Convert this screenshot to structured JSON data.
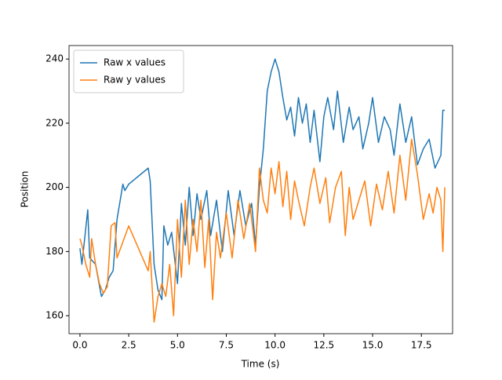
{
  "chart_data": {
    "type": "line",
    "xlabel": "Time (s)",
    "ylabel": "Position",
    "xlim": [
      -0.56,
      19.1
    ],
    "ylim": [
      154.4,
      244.2
    ],
    "xticks": [
      {
        "value": 0,
        "label": "0.0"
      },
      {
        "value": 2.5,
        "label": "2.5"
      },
      {
        "value": 5,
        "label": "5.0"
      },
      {
        "value": 7.5,
        "label": "7.5"
      },
      {
        "value": 10,
        "label": "10.0"
      },
      {
        "value": 12.5,
        "label": "12.5"
      },
      {
        "value": 15,
        "label": "15.0"
      },
      {
        "value": 17.5,
        "label": "17.5"
      }
    ],
    "yticks": [
      160,
      180,
      200,
      220,
      240
    ],
    "legend": "upper left",
    "series": [
      {
        "name": "Raw x values",
        "color": "#1f77b4",
        "x": [
          0,
          0.1,
          0.4,
          0.5,
          0.8,
          1.1,
          1.3,
          1.5,
          1.7,
          1.9,
          2.2,
          2.3,
          2.5,
          3.5,
          3.6,
          3.8,
          4.0,
          4.2,
          4.3,
          4.5,
          4.7,
          5.0,
          5.2,
          5.4,
          5.6,
          5.8,
          6.0,
          6.2,
          6.5,
          6.7,
          7.0,
          7.3,
          7.6,
          7.9,
          8.2,
          8.5,
          8.8,
          9.0,
          9.2,
          9.4,
          9.6,
          9.8,
          10.0,
          10.2,
          10.4,
          10.6,
          10.8,
          11.0,
          11.2,
          11.4,
          11.6,
          11.8,
          12.0,
          12.3,
          12.5,
          12.7,
          13.0,
          13.2,
          13.5,
          13.8,
          14.0,
          14.3,
          14.5,
          14.8,
          15.0,
          15.3,
          15.6,
          15.9,
          16.1,
          16.4,
          16.7,
          17.0,
          17.3,
          17.6,
          17.9,
          18.2,
          18.5,
          18.6,
          18.7
        ],
        "values": [
          181,
          176,
          193,
          178,
          176,
          166,
          168,
          172,
          174,
          190,
          201,
          199,
          201,
          206,
          202,
          176,
          168,
          165,
          188,
          182,
          186,
          170,
          195,
          182,
          200,
          185,
          198,
          190,
          199,
          185,
          196,
          180,
          199,
          185,
          199,
          188,
          195,
          182,
          200,
          212,
          230,
          236,
          240,
          236,
          228,
          221,
          225,
          216,
          228,
          220,
          226,
          214,
          224,
          208,
          222,
          228,
          218,
          230,
          214,
          225,
          218,
          222,
          212,
          220,
          228,
          214,
          222,
          218,
          210,
          226,
          214,
          222,
          207,
          212,
          215,
          206,
          210,
          224,
          224
        ]
      },
      {
        "name": "Raw y values",
        "color": "#ff7f0e",
        "x": [
          0,
          0.1,
          0.3,
          0.5,
          0.6,
          0.8,
          1.0,
          1.2,
          1.4,
          1.6,
          1.8,
          1.9,
          2.2,
          2.5,
          3.5,
          3.6,
          3.8,
          4.0,
          4.2,
          4.4,
          4.6,
          4.8,
          5.0,
          5.2,
          5.4,
          5.6,
          5.8,
          6.0,
          6.2,
          6.4,
          6.6,
          6.8,
          7.0,
          7.2,
          7.5,
          7.8,
          8.1,
          8.4,
          8.7,
          9.0,
          9.2,
          9.4,
          9.6,
          9.8,
          10.0,
          10.2,
          10.4,
          10.6,
          10.8,
          11.0,
          11.2,
          11.5,
          11.8,
          12.0,
          12.3,
          12.6,
          12.8,
          13.1,
          13.4,
          13.6,
          13.8,
          14.0,
          14.3,
          14.6,
          14.9,
          15.2,
          15.5,
          15.8,
          16.1,
          16.4,
          16.7,
          17.0,
          17.3,
          17.6,
          17.9,
          18.1,
          18.3,
          18.5,
          18.6,
          18.7
        ],
        "values": [
          184,
          182,
          176,
          172,
          184,
          176,
          170,
          167,
          169,
          188,
          189,
          178,
          183,
          188,
          174,
          180,
          158,
          166,
          170,
          166,
          176,
          160,
          190,
          172,
          196,
          176,
          190,
          180,
          196,
          175,
          190,
          165,
          186,
          178,
          192,
          178,
          196,
          184,
          195,
          180,
          206,
          196,
          192,
          206,
          198,
          208,
          194,
          205,
          190,
          202,
          196,
          188,
          200,
          206,
          195,
          203,
          189,
          200,
          205,
          185,
          200,
          190,
          196,
          202,
          188,
          201,
          193,
          205,
          192,
          210,
          196,
          215,
          204,
          190,
          198,
          192,
          200,
          196,
          180,
          200
        ]
      }
    ]
  }
}
